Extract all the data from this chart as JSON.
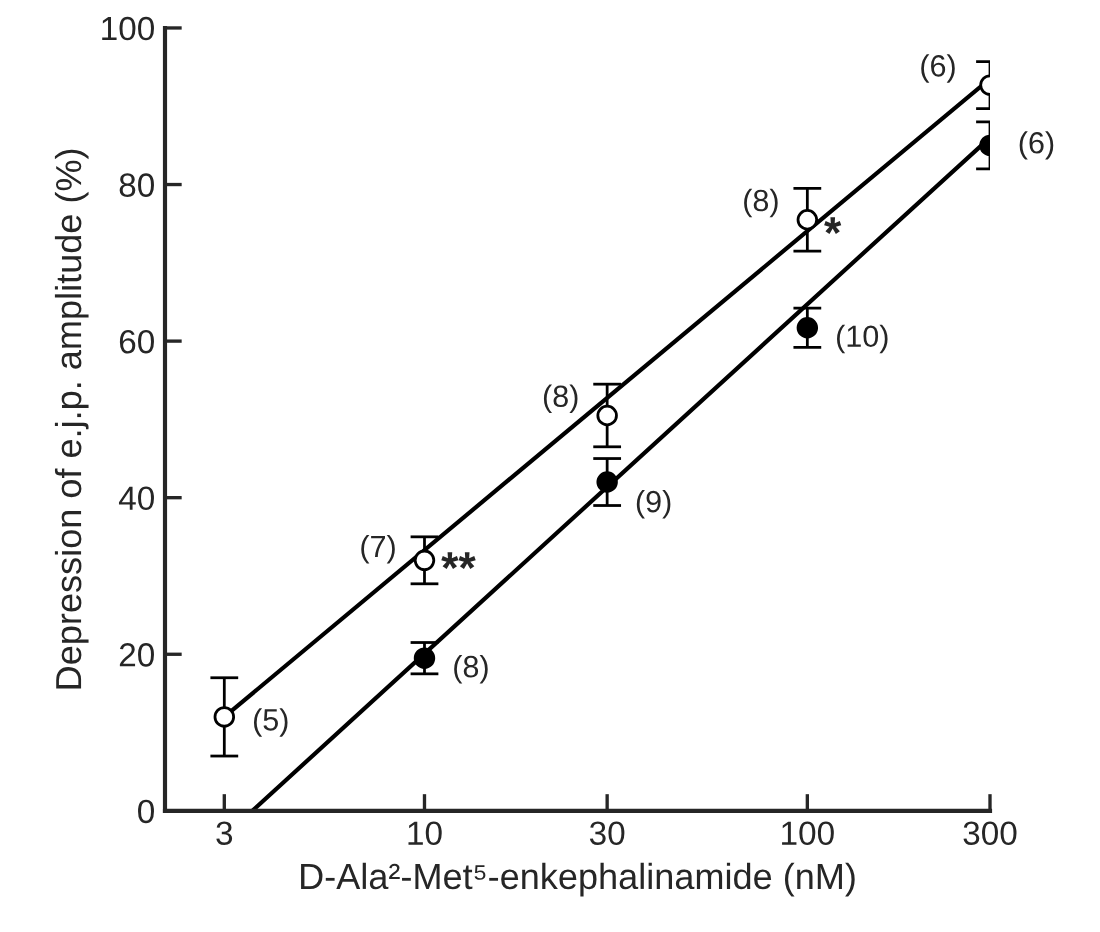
{
  "chart_data": {
    "type": "scatter",
    "xlabel": "D-Ala²-Met⁵-enkephalinamide (nM)",
    "ylabel": "Depression of e.j.p. amplitude (%)",
    "log": "x",
    "xlim": [
      2.1,
      300
    ],
    "xticks": [
      3,
      10,
      30,
      100,
      300
    ],
    "ylim": [
      0,
      100
    ],
    "yticks": [
      0,
      20,
      40,
      60,
      80,
      100
    ],
    "grid": false,
    "marker": "circle",
    "series": [
      {
        "type": "line",
        "color": "#000000",
        "x": [
          3,
          300
        ],
        "values": [
          12,
          93.5
        ],
        "marker": "none"
      },
      {
        "type": "line",
        "color": "#000000",
        "x": [
          3.55,
          300
        ],
        "values": [
          0,
          86
        ],
        "marker": "none"
      },
      {
        "color": "#ffffff",
        "x": [
          3,
          10,
          30,
          100,
          300
        ],
        "values": [
          12,
          32,
          50.5,
          75.5,
          92.7
        ],
        "errors": [
          5,
          3,
          4,
          4,
          3
        ]
      },
      {
        "color": "#000000",
        "x": [
          10,
          30,
          100,
          300
        ],
        "values": [
          19.5,
          42,
          61.7,
          85
        ],
        "errors": [
          2,
          3,
          2.5,
          3
        ]
      }
    ],
    "annotations": [
      {
        "text": "(5)",
        "x": 3,
        "y": 12
      },
      {
        "text": "(7)",
        "x": 10,
        "y": 32
      },
      {
        "text": "**",
        "x": 10,
        "y": 32
      },
      {
        "text": "(8)",
        "x": 30,
        "y": 50.5
      },
      {
        "text": "(8)",
        "x": 100,
        "y": 75.5
      },
      {
        "text": "*",
        "x": 100,
        "y": 75.5
      },
      {
        "text": "(6)",
        "x": 300,
        "y": 92.7
      },
      {
        "text": "(8)",
        "x": 10,
        "y": 19.5
      },
      {
        "text": "(9)",
        "x": 30,
        "y": 42
      },
      {
        "text": "(10)",
        "x": 100,
        "y": 61.7
      },
      {
        "text": "(6)",
        "x": 300,
        "y": 85
      }
    ]
  }
}
